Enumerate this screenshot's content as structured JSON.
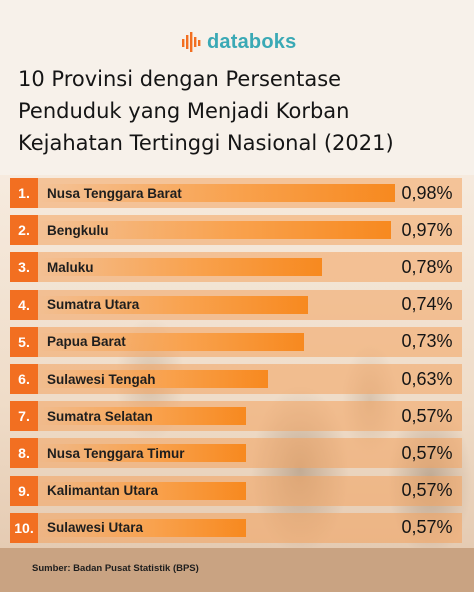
{
  "brand": {
    "logo_text": "databoks",
    "logo_icon": "databoks-bars-icon",
    "accent": "#3aa9b5"
  },
  "title_lines": [
    "10 Provinsi dengan Persentase",
    "Penduduk yang Menjadi Korban",
    "Kejahatan Tertinggi Nasional (2021)"
  ],
  "colors": {
    "rank_box": "#f26f21",
    "bar": "#f7891f",
    "row_band": "#f3a35f"
  },
  "chart_data": {
    "type": "bar",
    "orientation": "horizontal",
    "title": "10 Provinsi dengan Persentase Penduduk yang Menjadi Korban Kejahatan Tertinggi Nasional (2021)",
    "ranks": [
      "1.",
      "2.",
      "3.",
      "4.",
      "5.",
      "6.",
      "7.",
      "8.",
      "9.",
      "10."
    ],
    "categories": [
      "Nusa Tenggara Barat",
      "Bengkulu",
      "Maluku",
      "Sumatra Utara",
      "Papua Barat",
      "Sulawesi Tengah",
      "Sumatra Selatan",
      "Nusa Tenggara Timur",
      "Kalimantan Utara",
      "Sulawesi Utara"
    ],
    "values": [
      0.98,
      0.97,
      0.78,
      0.74,
      0.73,
      0.63,
      0.57,
      0.57,
      0.57,
      0.57
    ],
    "value_labels": [
      "0,98%",
      "0,97%",
      "0,78%",
      "0,74%",
      "0,73%",
      "0,63%",
      "0,57%",
      "0,57%",
      "0,57%",
      "0,57%"
    ],
    "unit": "%"
  },
  "source": "Sumber: Badan Pusat Statistik (BPS)"
}
